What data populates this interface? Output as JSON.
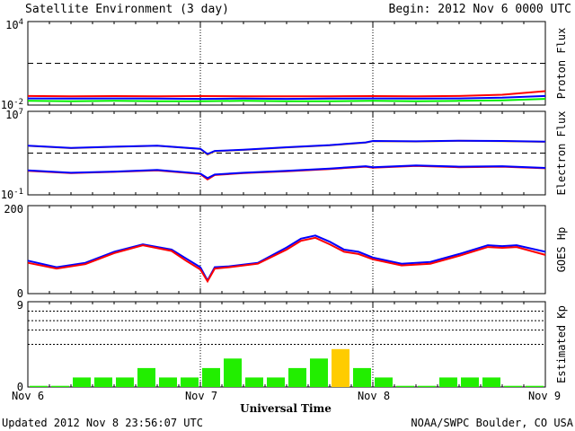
{
  "header": {
    "title": "Satellite Environment (3 day)",
    "begin": "Begin:  2012 Nov 6 0000 UTC"
  },
  "footer": {
    "updated": "Updated 2012 Nov  8 23:56:07 UTC",
    "credit": "NOAA/SWPC Boulder, CO USA",
    "xlabel": "Universal Time"
  },
  "x_ticks": [
    "Nov 6",
    "Nov 7",
    "Nov 8",
    "Nov 9"
  ],
  "colors": {
    "red": "#ff0000",
    "blue": "#0000ff",
    "green": "#00ee00",
    "orange": "#ffa500",
    "kp_normal": "#22ee00",
    "kp_active": "#ffcc00"
  },
  "chart_data": [
    {
      "type": "line",
      "ylabel": "Proton Flux",
      "scale": "log",
      "ylim": [
        0.01,
        10000
      ],
      "ytick_labels": {
        "top": "10",
        "top_exp": "4",
        "bottom": "10",
        "bottom_exp": "-2"
      },
      "threshold": 10,
      "x_hours": [
        0,
        6,
        12,
        18,
        24,
        30,
        36,
        42,
        48,
        54,
        60,
        66,
        72
      ],
      "series": [
        {
          "color": "red",
          "values": [
            0.045,
            0.043,
            0.044,
            0.043,
            0.044,
            0.043,
            0.042,
            0.043,
            0.044,
            0.042,
            0.045,
            0.055,
            0.1
          ]
        },
        {
          "color": "blue",
          "values": [
            0.03,
            0.029,
            0.03,
            0.029,
            0.028,
            0.029,
            0.028,
            0.029,
            0.03,
            0.029,
            0.03,
            0.034,
            0.045
          ]
        },
        {
          "color": "green",
          "values": [
            0.02,
            0.019,
            0.02,
            0.019,
            0.019,
            0.02,
            0.019,
            0.019,
            0.02,
            0.019,
            0.02,
            0.022,
            0.028
          ]
        }
      ]
    },
    {
      "type": "line",
      "ylabel": "Electron Flux",
      "scale": "log",
      "ylim": [
        0.1,
        10000000
      ],
      "ytick_labels": {
        "top": "10",
        "top_exp": "7",
        "bottom": "10",
        "bottom_exp": "-1"
      },
      "threshold": 1000,
      "x_hours": [
        0,
        6,
        12,
        18,
        24,
        25,
        26,
        30,
        36,
        42,
        47,
        48,
        54,
        60,
        66,
        72
      ],
      "series": [
        {
          "color": "orange",
          "values": [
            5000,
            3000,
            4000,
            5000,
            2500,
            700,
            1500,
            2000,
            3500,
            5500,
            10000,
            14000,
            13000,
            15000,
            14000,
            12000
          ]
        },
        {
          "color": "blue",
          "values": [
            5200,
            3100,
            4100,
            5200,
            2600,
            800,
            1600,
            2100,
            3600,
            5800,
            10500,
            14500,
            13500,
            15500,
            14500,
            12500
          ]
        },
        {
          "color": "red",
          "values": [
            20,
            12,
            16,
            22,
            10,
            3,
            8,
            12,
            18,
            30,
            50,
            40,
            60,
            45,
            50,
            35
          ]
        },
        {
          "color": "blue",
          "values": [
            22,
            13,
            17,
            24,
            11,
            4,
            9,
            13,
            20,
            33,
            55,
            44,
            65,
            50,
            55,
            38
          ]
        }
      ]
    },
    {
      "type": "line",
      "ylabel": "GOES Hp",
      "scale": "linear",
      "ylim": [
        0,
        200
      ],
      "ytick_labels": {
        "top": "200",
        "bottom": "0"
      },
      "x_hours": [
        0,
        4,
        8,
        12,
        16,
        20,
        22,
        24,
        25,
        26,
        28,
        32,
        36,
        38,
        40,
        42,
        44,
        46,
        48,
        52,
        56,
        60,
        64,
        66,
        68,
        72
      ],
      "series": [
        {
          "color": "blue",
          "values": [
            75,
            60,
            70,
            95,
            112,
            100,
            80,
            60,
            30,
            60,
            62,
            70,
            105,
            125,
            132,
            118,
            100,
            95,
            82,
            68,
            72,
            90,
            110,
            108,
            110,
            95
          ]
        },
        {
          "color": "red",
          "values": [
            70,
            57,
            67,
            92,
            110,
            97,
            75,
            55,
            28,
            57,
            60,
            68,
            100,
            120,
            127,
            112,
            95,
            90,
            78,
            64,
            68,
            86,
            106,
            104,
            106,
            88
          ]
        }
      ]
    },
    {
      "type": "bar",
      "ylabel": "Estimated Kp",
      "ylim": [
        0,
        9
      ],
      "ytick_labels": {
        "top": "9",
        "bottom": "0"
      },
      "dashed_levels": [
        4.5,
        6,
        7,
        8
      ],
      "bin_hours": 3,
      "values": [
        0,
        0,
        1,
        1,
        1,
        2,
        1,
        1,
        2,
        3,
        1,
        1,
        2,
        3,
        4,
        2,
        1,
        0,
        0,
        1,
        1,
        1,
        0,
        0
      ],
      "active_from": 4
    }
  ]
}
